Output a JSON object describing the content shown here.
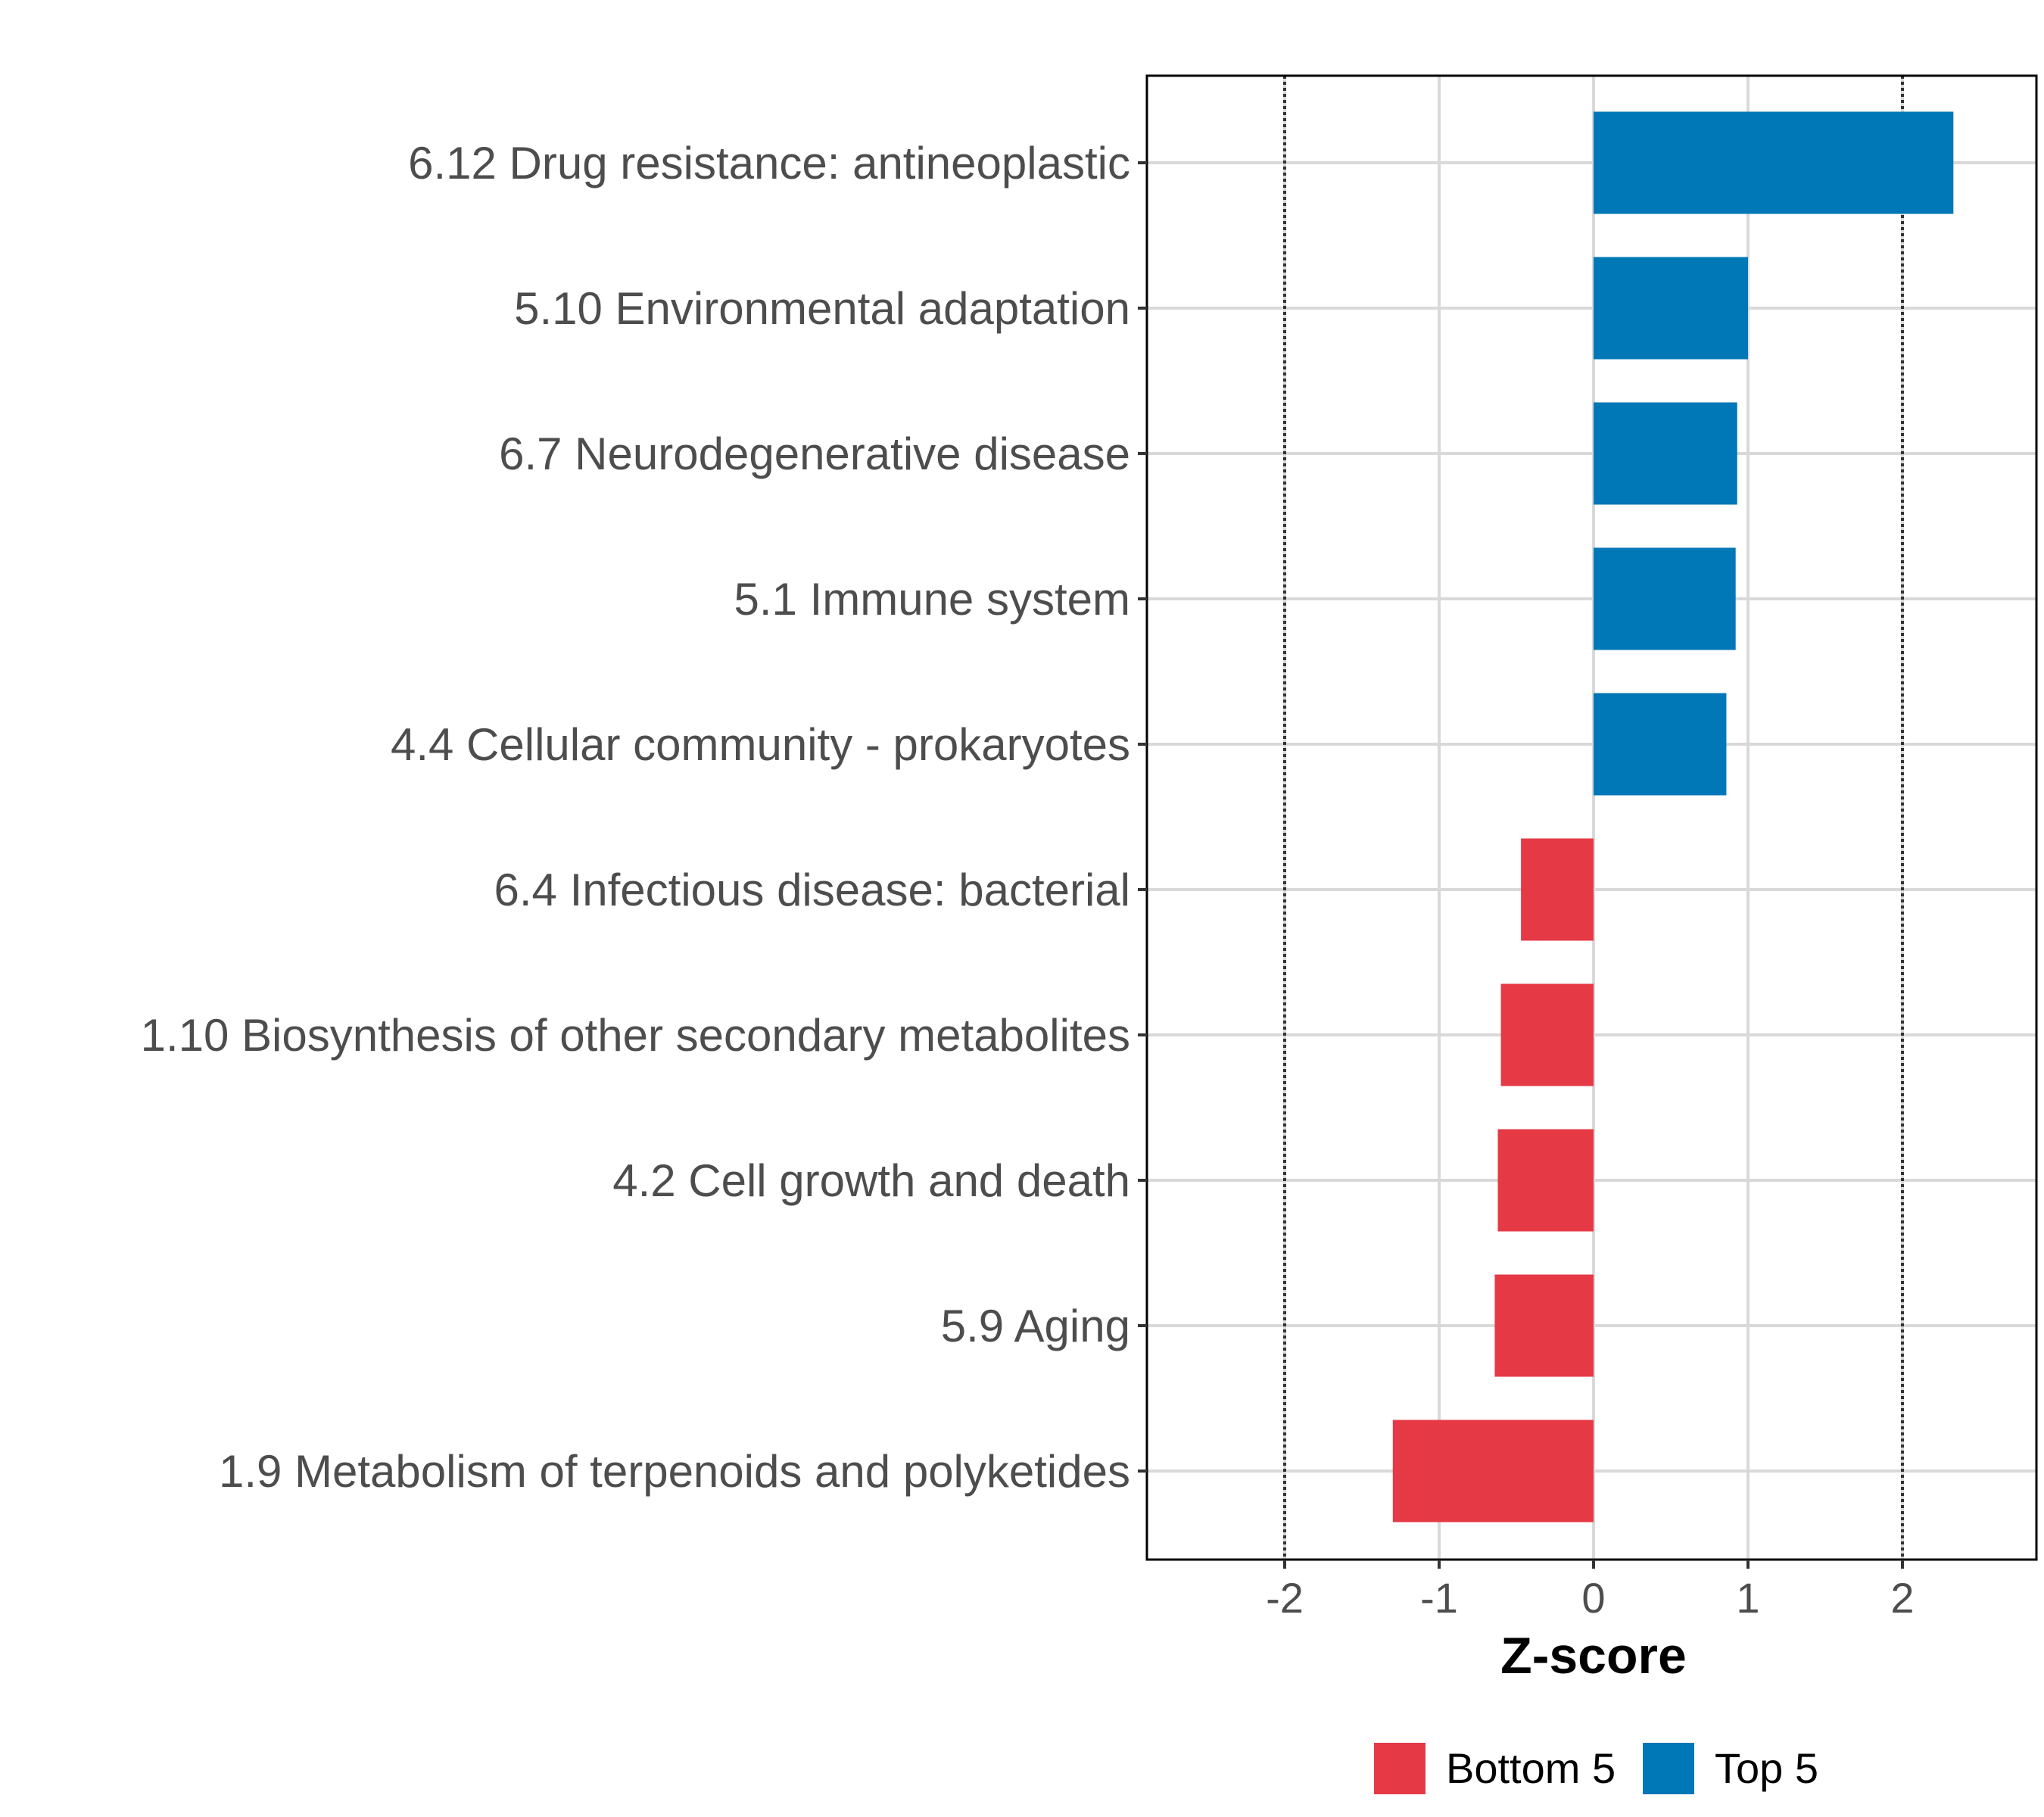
{
  "chart_data": {
    "type": "bar",
    "orientation": "horizontal",
    "title": "",
    "xlabel": "Z-score",
    "ylabel": "",
    "xlim": [
      -2.9,
      2.9
    ],
    "x_ticks": [
      "-2",
      "-1",
      "0",
      "1",
      "2"
    ],
    "x_tick_values": [
      -2,
      -1,
      0,
      1,
      2
    ],
    "reference_lines": [
      -2,
      2
    ],
    "grid": true,
    "legend_position": "bottom",
    "categories": [
      "6.12 Drug resistance: antineoplastic",
      "5.10 Environmental adaptation",
      "6.7 Neurodegenerative disease",
      "5.1 Immune system",
      "4.4 Cellular community - prokaryotes",
      "6.4 Infectious disease: bacterial",
      "1.10 Biosynthesis of other secondary metabolites",
      "4.2 Cell growth and death",
      "5.9 Aging",
      "1.9 Metabolism of terpenoids and polyketides"
    ],
    "values": [
      2.33,
      1.0,
      0.93,
      0.92,
      0.86,
      -0.47,
      -0.6,
      -0.62,
      -0.64,
      -1.3
    ],
    "groups": [
      "Top 5",
      "Top 5",
      "Top 5",
      "Top 5",
      "Top 5",
      "Bottom 5",
      "Bottom 5",
      "Bottom 5",
      "Bottom 5",
      "Bottom 5"
    ],
    "legend": [
      {
        "name": "Bottom 5",
        "color": "#e63946"
      },
      {
        "name": "Top 5",
        "color": "#0077b6"
      }
    ]
  }
}
